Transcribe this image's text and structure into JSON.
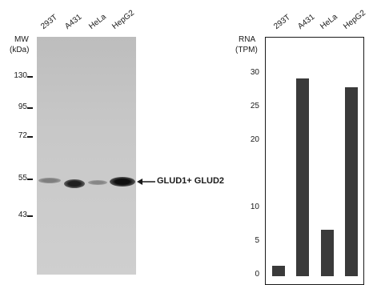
{
  "blot": {
    "mw_label": "MW",
    "kda_label": "(kDa)",
    "lanes": [
      "293T",
      "A431",
      "HeLa",
      "HepG2"
    ],
    "markers": [
      "130",
      "95",
      "72",
      "55",
      "43"
    ],
    "band_label": "GLUD1+ GLUD2",
    "band_intensity": [
      0.35,
      0.9,
      0.3,
      1.0
    ]
  },
  "chart_data": {
    "type": "bar",
    "categories": [
      "293T",
      "A431",
      "HeLa",
      "HepG2"
    ],
    "values": [
      1.3,
      29.2,
      6.7,
      27.8
    ],
    "ylabel": "RNA\n(TPM)",
    "ylabel_line1": "RNA",
    "ylabel_line2": "(TPM)",
    "yticks": [
      0,
      5,
      10,
      20,
      25,
      30
    ],
    "ylim": [
      0,
      33
    ],
    "color": "#3a3a3a"
  }
}
